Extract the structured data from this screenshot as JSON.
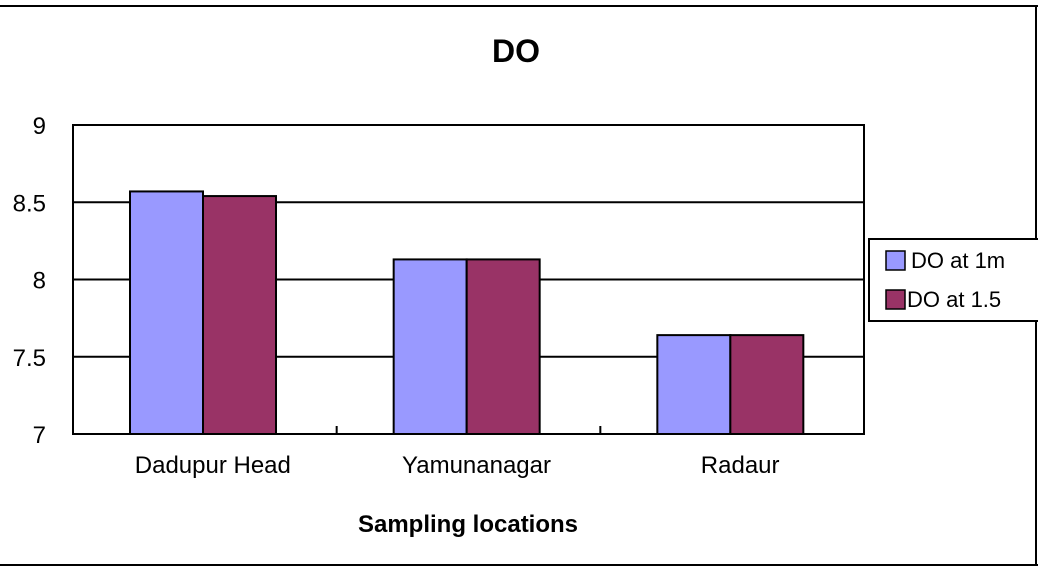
{
  "chart_data": {
    "type": "bar",
    "title": "DO",
    "xlabel": "Sampling locations",
    "ylabel": "",
    "categories": [
      "Dadupur Head",
      "Yamunanagar",
      "Radaur"
    ],
    "series": [
      {
        "name": "DO at 1m",
        "values": [
          8.57,
          8.13,
          7.64
        ],
        "color": "#9999ff"
      },
      {
        "name": "DO at 1.5",
        "values": [
          8.54,
          8.13,
          7.64
        ],
        "color": "#993366"
      }
    ],
    "ylim": [
      7,
      9
    ],
    "yticks": [
      7,
      7.5,
      8,
      8.5,
      9
    ],
    "ytick_labels": [
      "7",
      "7.5",
      "8",
      "8.5",
      "9"
    ],
    "grid": true,
    "legend_position": "right"
  }
}
